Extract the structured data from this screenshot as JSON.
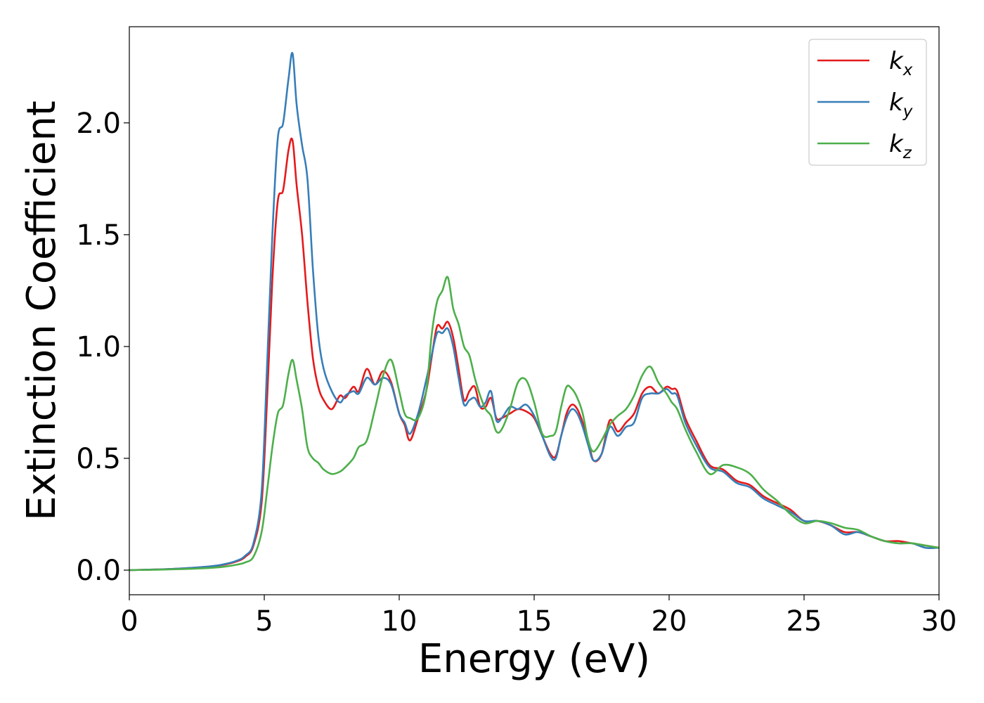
{
  "chart_data": {
    "type": "line",
    "xlabel": "Energy (eV)",
    "ylabel": "Extinction Coefficient",
    "xlim": [
      0,
      30
    ],
    "ylim": [
      -0.11,
      2.43
    ],
    "xticks": [
      0,
      5,
      10,
      15,
      20,
      25,
      30
    ],
    "xtick_labels": [
      "0",
      "5",
      "10",
      "15",
      "20",
      "25",
      "30"
    ],
    "yticks": [
      0.0,
      0.5,
      1.0,
      1.5,
      2.0
    ],
    "ytick_labels": [
      "0.0",
      "0.5",
      "1.0",
      "1.5",
      "2.0"
    ],
    "grid": false,
    "legend_position": "top-right",
    "series": [
      {
        "name": "k_x",
        "label_main": "k",
        "label_sub": "x",
        "color": "#e41a1c",
        "x": [
          0,
          1,
          2,
          3,
          3.5,
          4,
          4.3,
          4.6,
          4.9,
          5.1,
          5.3,
          5.5,
          5.7,
          5.9,
          6.05,
          6.2,
          6.4,
          6.6,
          6.8,
          7.0,
          7.2,
          7.5,
          7.8,
          8.0,
          8.3,
          8.5,
          8.8,
          9.1,
          9.4,
          9.7,
          10.0,
          10.2,
          10.4,
          10.7,
          11.0,
          11.2,
          11.4,
          11.6,
          11.8,
          12.0,
          12.2,
          12.4,
          12.6,
          12.8,
          13.0,
          13.2,
          13.4,
          13.6,
          13.8,
          14.1,
          14.4,
          14.7,
          15.0,
          15.3,
          15.6,
          15.8,
          16.0,
          16.2,
          16.4,
          16.6,
          16.8,
          17.0,
          17.2,
          17.5,
          17.8,
          18.1,
          18.4,
          18.7,
          19.0,
          19.3,
          19.6,
          19.9,
          20.1,
          20.3,
          20.6,
          21.0,
          21.5,
          22.0,
          22.5,
          23.0,
          23.5,
          24.0,
          24.5,
          25.0,
          25.5,
          26.0,
          26.5,
          27.0,
          27.5,
          28.0,
          28.5,
          29.0,
          29.5,
          30.0
        ],
        "values": [
          0.0,
          0.003,
          0.008,
          0.016,
          0.024,
          0.04,
          0.06,
          0.11,
          0.3,
          0.75,
          1.3,
          1.65,
          1.7,
          1.88,
          1.92,
          1.72,
          1.5,
          1.2,
          0.95,
          0.82,
          0.76,
          0.72,
          0.78,
          0.77,
          0.82,
          0.8,
          0.9,
          0.83,
          0.89,
          0.84,
          0.7,
          0.65,
          0.58,
          0.68,
          0.8,
          0.95,
          1.09,
          1.08,
          1.11,
          1.04,
          0.9,
          0.76,
          0.8,
          0.82,
          0.73,
          0.73,
          0.77,
          0.68,
          0.68,
          0.7,
          0.72,
          0.71,
          0.68,
          0.6,
          0.52,
          0.51,
          0.6,
          0.7,
          0.74,
          0.72,
          0.66,
          0.58,
          0.49,
          0.52,
          0.67,
          0.62,
          0.66,
          0.7,
          0.79,
          0.82,
          0.79,
          0.82,
          0.81,
          0.8,
          0.68,
          0.58,
          0.47,
          0.45,
          0.4,
          0.38,
          0.33,
          0.3,
          0.27,
          0.22,
          0.22,
          0.2,
          0.17,
          0.17,
          0.15,
          0.13,
          0.13,
          0.12,
          0.11,
          0.1
        ]
      },
      {
        "name": "k_y",
        "label_main": "k",
        "label_sub": "y",
        "color": "#377eb8",
        "x": [
          0,
          1,
          2,
          3,
          3.5,
          4,
          4.3,
          4.6,
          4.9,
          5.1,
          5.3,
          5.5,
          5.7,
          5.9,
          6.05,
          6.2,
          6.4,
          6.6,
          6.8,
          7.0,
          7.2,
          7.5,
          7.8,
          8.0,
          8.3,
          8.5,
          8.8,
          9.1,
          9.4,
          9.7,
          10.0,
          10.2,
          10.4,
          10.7,
          11.0,
          11.2,
          11.4,
          11.6,
          11.8,
          12.0,
          12.2,
          12.4,
          12.6,
          12.8,
          13.0,
          13.2,
          13.4,
          13.6,
          13.8,
          14.1,
          14.4,
          14.7,
          15.0,
          15.3,
          15.6,
          15.8,
          16.0,
          16.2,
          16.4,
          16.6,
          16.8,
          17.0,
          17.2,
          17.5,
          17.8,
          18.1,
          18.4,
          18.7,
          19.0,
          19.3,
          19.6,
          19.9,
          20.1,
          20.3,
          20.6,
          21.0,
          21.5,
          22.0,
          22.5,
          23.0,
          23.5,
          24.0,
          24.5,
          25.0,
          25.5,
          26.0,
          26.5,
          27.0,
          27.5,
          28.0,
          28.5,
          29.0,
          29.5,
          30.0
        ],
        "values": [
          0.0,
          0.003,
          0.008,
          0.017,
          0.026,
          0.043,
          0.065,
          0.12,
          0.35,
          0.9,
          1.5,
          1.93,
          2.0,
          2.2,
          2.31,
          2.08,
          1.9,
          1.75,
          1.35,
          1.05,
          0.9,
          0.8,
          0.75,
          0.78,
          0.8,
          0.79,
          0.86,
          0.83,
          0.86,
          0.83,
          0.7,
          0.66,
          0.61,
          0.7,
          0.85,
          0.96,
          1.06,
          1.06,
          1.08,
          1.0,
          0.86,
          0.74,
          0.76,
          0.77,
          0.73,
          0.75,
          0.8,
          0.67,
          0.68,
          0.73,
          0.72,
          0.74,
          0.69,
          0.6,
          0.51,
          0.5,
          0.6,
          0.68,
          0.72,
          0.7,
          0.64,
          0.56,
          0.49,
          0.52,
          0.64,
          0.6,
          0.64,
          0.66,
          0.77,
          0.79,
          0.79,
          0.81,
          0.79,
          0.78,
          0.66,
          0.56,
          0.46,
          0.44,
          0.39,
          0.37,
          0.32,
          0.29,
          0.26,
          0.22,
          0.22,
          0.2,
          0.16,
          0.17,
          0.15,
          0.13,
          0.12,
          0.12,
          0.1,
          0.1
        ]
      },
      {
        "name": "k_z",
        "label_main": "k",
        "label_sub": "z",
        "color": "#4daf4a",
        "x": [
          0,
          1,
          2,
          3,
          3.5,
          4,
          4.3,
          4.6,
          4.9,
          5.1,
          5.3,
          5.5,
          5.7,
          5.9,
          6.05,
          6.2,
          6.4,
          6.6,
          6.8,
          7.0,
          7.2,
          7.5,
          7.8,
          8.0,
          8.3,
          8.5,
          8.8,
          9.1,
          9.4,
          9.7,
          10.0,
          10.2,
          10.4,
          10.7,
          11.0,
          11.2,
          11.4,
          11.6,
          11.8,
          12.0,
          12.2,
          12.4,
          12.6,
          12.8,
          13.0,
          13.2,
          13.4,
          13.6,
          13.8,
          14.1,
          14.4,
          14.7,
          15.0,
          15.3,
          15.6,
          15.8,
          16.0,
          16.2,
          16.4,
          16.6,
          16.8,
          17.0,
          17.2,
          17.5,
          17.8,
          18.1,
          18.4,
          18.7,
          19.0,
          19.3,
          19.6,
          19.9,
          20.1,
          20.3,
          20.6,
          21.0,
          21.5,
          22.0,
          22.5,
          23.0,
          23.5,
          24.0,
          24.5,
          25.0,
          25.5,
          26.0,
          26.5,
          27.0,
          27.5,
          28.0,
          28.5,
          29.0,
          29.5,
          30.0
        ],
        "values": [
          0.0,
          0.002,
          0.005,
          0.01,
          0.015,
          0.025,
          0.035,
          0.06,
          0.17,
          0.35,
          0.55,
          0.7,
          0.74,
          0.88,
          0.94,
          0.85,
          0.72,
          0.55,
          0.5,
          0.48,
          0.45,
          0.43,
          0.44,
          0.46,
          0.5,
          0.55,
          0.58,
          0.72,
          0.87,
          0.94,
          0.8,
          0.7,
          0.68,
          0.68,
          0.8,
          1.05,
          1.2,
          1.25,
          1.31,
          1.17,
          1.1,
          1.0,
          0.96,
          0.86,
          0.78,
          0.72,
          0.69,
          0.62,
          0.63,
          0.72,
          0.84,
          0.85,
          0.75,
          0.61,
          0.6,
          0.62,
          0.73,
          0.82,
          0.81,
          0.77,
          0.7,
          0.58,
          0.53,
          0.58,
          0.65,
          0.69,
          0.72,
          0.78,
          0.87,
          0.91,
          0.84,
          0.79,
          0.75,
          0.72,
          0.63,
          0.53,
          0.43,
          0.47,
          0.46,
          0.43,
          0.36,
          0.31,
          0.25,
          0.21,
          0.22,
          0.21,
          0.19,
          0.18,
          0.15,
          0.13,
          0.12,
          0.12,
          0.11,
          0.1
        ]
      }
    ]
  }
}
